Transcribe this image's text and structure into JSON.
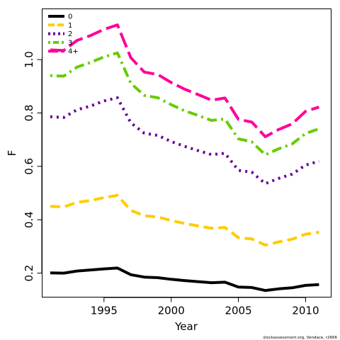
{
  "chart_data": {
    "type": "line",
    "xlabel": "Year",
    "ylabel": "F",
    "xlim": [
      1990.4,
      2011.9
    ],
    "ylim": [
      0.11,
      1.19
    ],
    "x_ticks": [
      1995,
      2000,
      2005,
      2010
    ],
    "y_ticks": [
      0.2,
      0.4,
      0.6,
      0.8,
      1.0
    ],
    "x_tick_labels": [
      "1995",
      "2000",
      "2005",
      "2010"
    ],
    "y_tick_labels": [
      "0.2",
      "0.4",
      "0.6",
      "0.8",
      "1.0"
    ],
    "legend_position": "top-left",
    "footnote": "stockassessment.org, Vendace, r2666",
    "x": [
      1991,
      1992,
      1993,
      1994,
      1995,
      1996,
      1997,
      1998,
      1999,
      2000,
      2001,
      2002,
      2003,
      2004,
      2005,
      2006,
      2007,
      2008,
      2009,
      2010,
      2011
    ],
    "series": [
      {
        "name": "0",
        "color": "#000000",
        "dash": "solid",
        "values": [
          0.201,
          0.2,
          0.208,
          0.212,
          0.216,
          0.219,
          0.194,
          0.185,
          0.183,
          0.177,
          0.172,
          0.168,
          0.164,
          0.166,
          0.148,
          0.146,
          0.135,
          0.141,
          0.145,
          0.154,
          0.157
        ]
      },
      {
        "name": "1",
        "color": "#FFCC00",
        "dash": "dashed",
        "values": [
          0.45,
          0.448,
          0.465,
          0.472,
          0.483,
          0.491,
          0.435,
          0.415,
          0.41,
          0.397,
          0.386,
          0.377,
          0.368,
          0.371,
          0.333,
          0.328,
          0.305,
          0.317,
          0.327,
          0.346,
          0.353
        ]
      },
      {
        "name": "2",
        "color": "#660099",
        "dash": "dotted",
        "values": [
          0.786,
          0.783,
          0.812,
          0.826,
          0.845,
          0.857,
          0.763,
          0.724,
          0.716,
          0.693,
          0.675,
          0.659,
          0.644,
          0.649,
          0.585,
          0.578,
          0.535,
          0.555,
          0.571,
          0.605,
          0.619
        ]
      },
      {
        "name": "3",
        "color": "#66CC00",
        "dash": "dotdash",
        "values": [
          0.94,
          0.938,
          0.972,
          0.989,
          1.01,
          1.025,
          0.911,
          0.866,
          0.857,
          0.831,
          0.808,
          0.791,
          0.772,
          0.777,
          0.703,
          0.692,
          0.643,
          0.666,
          0.684,
          0.723,
          0.741
        ]
      },
      {
        "name": "4+",
        "color": "#FF0099",
        "dash": "longdash",
        "values": [
          1.036,
          1.034,
          1.072,
          1.09,
          1.113,
          1.13,
          1.007,
          0.953,
          0.944,
          0.914,
          0.889,
          0.869,
          0.848,
          0.856,
          0.776,
          0.766,
          0.711,
          0.738,
          0.759,
          0.806,
          0.822
        ]
      }
    ]
  }
}
